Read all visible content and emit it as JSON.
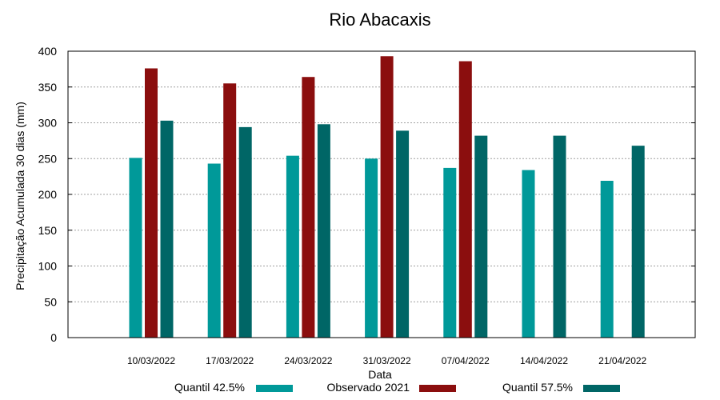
{
  "chart_data": {
    "type": "bar",
    "title": "Rio Abacaxis",
    "xlabel": "Data",
    "ylabel": "Precipitação Acumulada 30 dias (mm)",
    "ylim": [
      0,
      400
    ],
    "yticks": [
      0,
      50,
      100,
      150,
      200,
      250,
      300,
      350,
      400
    ],
    "grid": true,
    "legend_position": "bottom",
    "categories": [
      "10/03/2022",
      "17/03/2022",
      "24/03/2022",
      "31/03/2022",
      "07/04/2022",
      "14/04/2022",
      "21/04/2022"
    ],
    "series": [
      {
        "name": "Quantil 42.5%",
        "color": "#009999",
        "values": [
          251,
          243,
          254,
          250,
          237,
          234,
          219
        ]
      },
      {
        "name": "Observado 2021",
        "color": "#8b0e0e",
        "values": [
          376,
          355,
          364,
          393,
          386,
          null,
          null
        ]
      },
      {
        "name": "Quantil 57.5%",
        "color": "#006666",
        "values": [
          303,
          294,
          298,
          289,
          282,
          282,
          268
        ]
      }
    ]
  }
}
